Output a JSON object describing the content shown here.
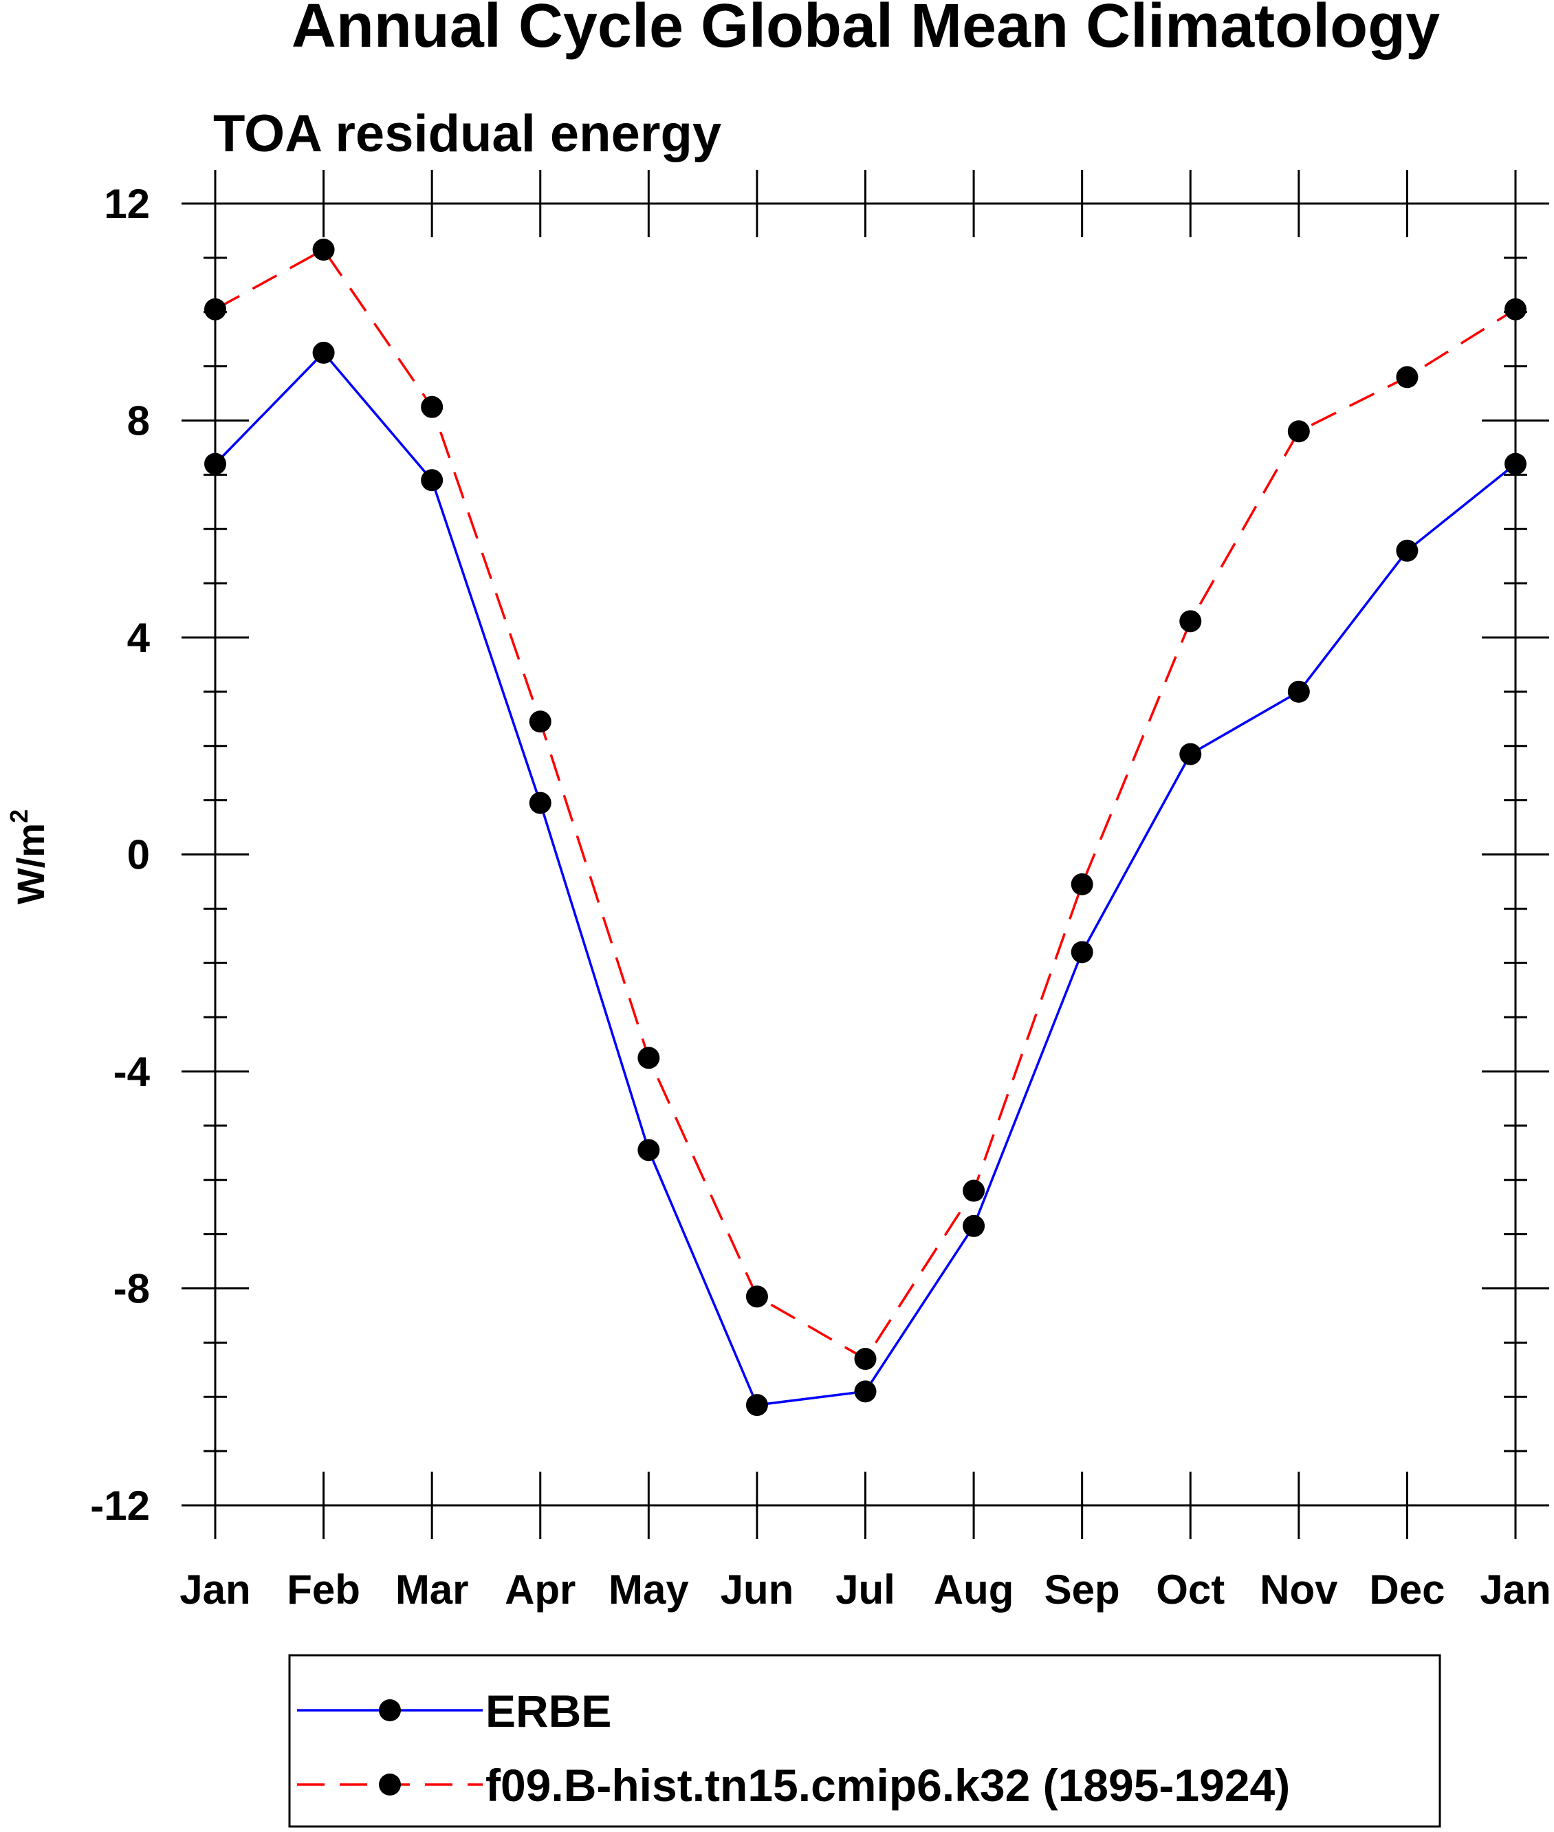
{
  "chart_data": {
    "type": "line",
    "title": "Annual Cycle Global Mean Climatology",
    "subtitle": "TOA residual energy",
    "xlabel": "",
    "ylabel": "W/m",
    "ylabel_superscript": "2",
    "categories": [
      "Jan",
      "Feb",
      "Mar",
      "Apr",
      "May",
      "Jun",
      "Jul",
      "Aug",
      "Sep",
      "Oct",
      "Nov",
      "Dec",
      "Jan"
    ],
    "ylim": [
      -12,
      12
    ],
    "yticks": [
      -12,
      -8,
      -4,
      0,
      4,
      8,
      12
    ],
    "yticks_labels": [
      "-12",
      "-8",
      "-4",
      "0",
      "4",
      "8",
      "12"
    ],
    "y_minor_step": 1,
    "grid": false,
    "legend_position": "bottom",
    "series": [
      {
        "name": "ERBE",
        "color": "#0000ff",
        "dash": "solid",
        "marker": "filled-circle",
        "values": [
          7.2,
          9.25,
          6.9,
          0.95,
          -5.45,
          -10.15,
          -9.9,
          -6.85,
          -1.8,
          1.85,
          3.0,
          5.6,
          7.2
        ]
      },
      {
        "name": "f09.B-hist.tn15.cmip6.k32 (1895-1924)",
        "color": "#ff0000",
        "dash": "dashed",
        "marker": "filled-circle",
        "values": [
          10.05,
          11.15,
          8.25,
          2.45,
          -3.75,
          -8.15,
          -9.3,
          -6.2,
          -0.55,
          4.3,
          7.8,
          8.8,
          10.05
        ]
      }
    ],
    "marker_color": "#000000",
    "axis_color": "#000000"
  }
}
